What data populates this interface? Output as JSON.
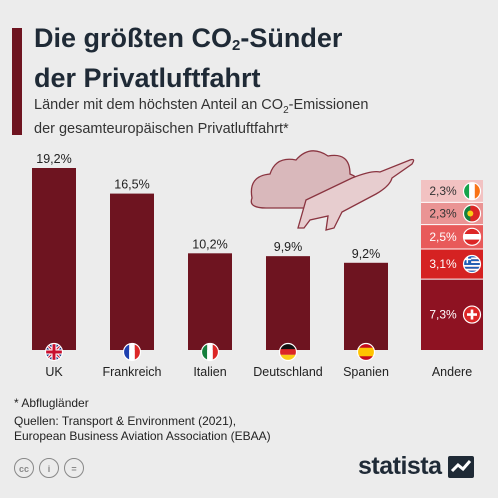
{
  "header": {
    "title_line1": "Die größten CO",
    "title_sub": "2",
    "title_line1_end": "-Sünder",
    "title_line2": "der Privatluftfahrt",
    "subtitle_line1_a": "Länder mit dem höchsten Anteil an CO",
    "subtitle_sub": "2",
    "subtitle_line1_b": "-Emissionen",
    "subtitle_line2": "der gesamteuropäischen Privatluftfahrt*"
  },
  "colors": {
    "bar": "#6e1420",
    "accent": "#6e1420",
    "stack": [
      "#f2c2c2",
      "#ea9494",
      "#e85a5a",
      "#d52222",
      "#8e1222"
    ]
  },
  "chart_data": {
    "type": "bar",
    "categories": [
      "UK",
      "Frankreich",
      "Italien",
      "Deutschland",
      "Spanien"
    ],
    "values": [
      19.2,
      16.5,
      10.2,
      9.9,
      9.2
    ],
    "value_labels": [
      "19,2%",
      "16,5%",
      "10,2%",
      "9,9%",
      "9,2%"
    ],
    "flags": [
      "uk-flag-icon",
      "france-flag-icon",
      "italy-flag-icon",
      "germany-flag-icon",
      "spain-flag-icon"
    ],
    "stacked_other": {
      "label": "Andere",
      "segments": [
        {
          "value": 2.3,
          "label": "2,3%",
          "flag": "ireland-flag-icon"
        },
        {
          "value": 2.3,
          "label": "2,3%",
          "flag": "portugal-flag-icon"
        },
        {
          "value": 2.5,
          "label": "2,5%",
          "flag": "austria-flag-icon"
        },
        {
          "value": 3.1,
          "label": "3,1%",
          "flag": "greece-flag-icon"
        },
        {
          "value": 7.3,
          "label": "7,3%",
          "flag": "switzerland-flag-icon"
        }
      ]
    },
    "ylim": [
      0,
      19.2
    ]
  },
  "footer": {
    "note": "* Abflugländer",
    "sources_line1": "Quellen: Transport & Environment (2021),",
    "sources_line2": "European Business Aviation Association (EBAA)",
    "logo": "statista",
    "license_icons": [
      "cc",
      "i",
      "="
    ]
  }
}
